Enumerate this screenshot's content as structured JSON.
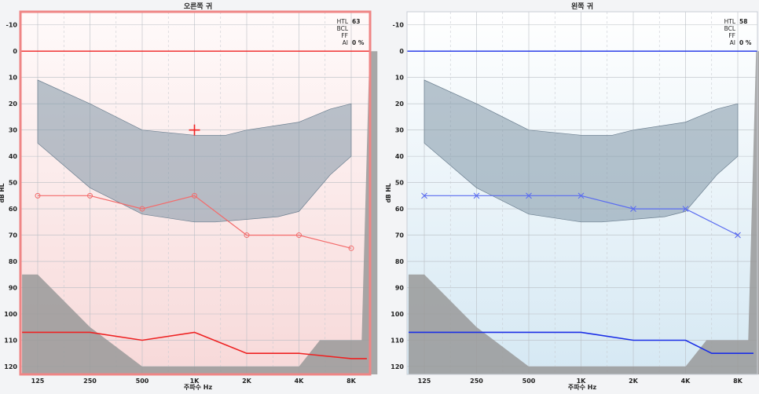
{
  "chart_data": [
    {
      "type": "line",
      "title": "오른쪽 귀",
      "xlabel": "주파수 Hz",
      "ylabel": "dB HL",
      "x_categories": [
        "125",
        "250",
        "500",
        "1K",
        "2K",
        "4K",
        "8K"
      ],
      "y_ticks": [
        -10,
        0,
        10,
        20,
        30,
        40,
        50,
        60,
        70,
        80,
        90,
        100,
        110,
        120
      ],
      "ylim": [
        -15,
        123
      ],
      "y_inverted": true,
      "accent_color": "#ee2222",
      "background_gradient": [
        "#fffafa",
        "#f7d9d9"
      ],
      "frame_color": "#ef8585",
      "stats": [
        {
          "label": "HTL",
          "value": "63"
        },
        {
          "label": "BCL",
          "value": ""
        },
        {
          "label": "FF",
          "value": ""
        },
        {
          "label": "AI",
          "value": "0 %"
        }
      ],
      "speech_banana": {
        "upper": [
          [
            0,
            11
          ],
          [
            1,
            20
          ],
          [
            2,
            30
          ],
          [
            3,
            32
          ],
          [
            3.6,
            32
          ],
          [
            4,
            30
          ],
          [
            5,
            27
          ],
          [
            5.6,
            22
          ],
          [
            6,
            20
          ]
        ],
        "lower": [
          [
            6,
            40
          ],
          [
            5.6,
            47
          ],
          [
            5,
            61
          ],
          [
            4.6,
            63
          ],
          [
            4,
            64
          ],
          [
            3.4,
            65
          ],
          [
            3,
            65
          ],
          [
            2,
            62
          ],
          [
            1,
            52
          ],
          [
            0,
            35
          ]
        ],
        "color": "#7f95a6"
      },
      "unaided_marker": {
        "x": 3,
        "y": 30,
        "symbol": "plus"
      },
      "air_conduction": {
        "symbol": "circle",
        "x": [
          0,
          1,
          2,
          3,
          4,
          5,
          6
        ],
        "values": [
          55,
          55,
          60,
          55,
          70,
          70,
          75
        ]
      },
      "threshold_line": {
        "x": [
          -0.3,
          1,
          2,
          3,
          4,
          5,
          6,
          6.3
        ],
        "values": [
          107,
          107,
          110,
          107,
          115,
          115,
          117,
          117
        ]
      },
      "output_limit_area": [
        [
          -0.3,
          85
        ],
        [
          0,
          85
        ],
        [
          1,
          105
        ],
        [
          2,
          120
        ],
        [
          5,
          120
        ],
        [
          5.4,
          110
        ],
        [
          6,
          110
        ],
        [
          6.2,
          110
        ],
        [
          6.35,
          0
        ],
        [
          6.5,
          0
        ],
        [
          6.5,
          123
        ],
        [
          -0.3,
          123
        ]
      ],
      "max_output_color": "#999999"
    },
    {
      "type": "line",
      "title": "왼쪽 귀",
      "xlabel": "주파수 Hz",
      "ylabel": "dB HL",
      "x_categories": [
        "125",
        "250",
        "500",
        "1K",
        "2K",
        "4K",
        "8K"
      ],
      "y_ticks": [
        -10,
        0,
        10,
        20,
        30,
        40,
        50,
        60,
        70,
        80,
        90,
        100,
        110,
        120
      ],
      "ylim": [
        -15,
        123
      ],
      "y_inverted": true,
      "accent_color": "#1a2ee6",
      "background_gradient": [
        "#ffffff",
        "#d5e8f3"
      ],
      "frame_color": "#c9ced6",
      "stats": [
        {
          "label": "HTL",
          "value": "58"
        },
        {
          "label": "BCL",
          "value": ""
        },
        {
          "label": "FF",
          "value": ""
        },
        {
          "label": "AI",
          "value": "0 %"
        }
      ],
      "speech_banana": {
        "upper": [
          [
            0,
            11
          ],
          [
            1,
            20
          ],
          [
            2,
            30
          ],
          [
            3,
            32
          ],
          [
            3.6,
            32
          ],
          [
            4,
            30
          ],
          [
            5,
            27
          ],
          [
            5.6,
            22
          ],
          [
            6,
            20
          ]
        ],
        "lower": [
          [
            6,
            40
          ],
          [
            5.6,
            47
          ],
          [
            5,
            61
          ],
          [
            4.6,
            63
          ],
          [
            4,
            64
          ],
          [
            3.4,
            65
          ],
          [
            3,
            65
          ],
          [
            2,
            62
          ],
          [
            1,
            52
          ],
          [
            0,
            35
          ]
        ],
        "color": "#7f95a6"
      },
      "unaided_marker": null,
      "air_conduction": {
        "symbol": "x",
        "x": [
          0,
          1,
          2,
          3,
          4,
          5,
          6
        ],
        "values": [
          55,
          55,
          55,
          55,
          60,
          60,
          70
        ]
      },
      "threshold_line": {
        "x": [
          -0.3,
          1,
          2,
          3,
          4,
          5,
          5.5,
          6.3
        ],
        "values": [
          107,
          107,
          107,
          107,
          110,
          110,
          115,
          115
        ]
      },
      "output_limit_area": [
        [
          -0.3,
          85
        ],
        [
          0,
          85
        ],
        [
          1,
          105
        ],
        [
          2,
          120
        ],
        [
          5,
          120
        ],
        [
          5.4,
          110
        ],
        [
          6,
          110
        ],
        [
          6.2,
          110
        ],
        [
          6.35,
          0
        ],
        [
          6.5,
          0
        ],
        [
          6.5,
          123
        ],
        [
          -0.3,
          123
        ]
      ],
      "max_output_color": "#999999"
    }
  ]
}
